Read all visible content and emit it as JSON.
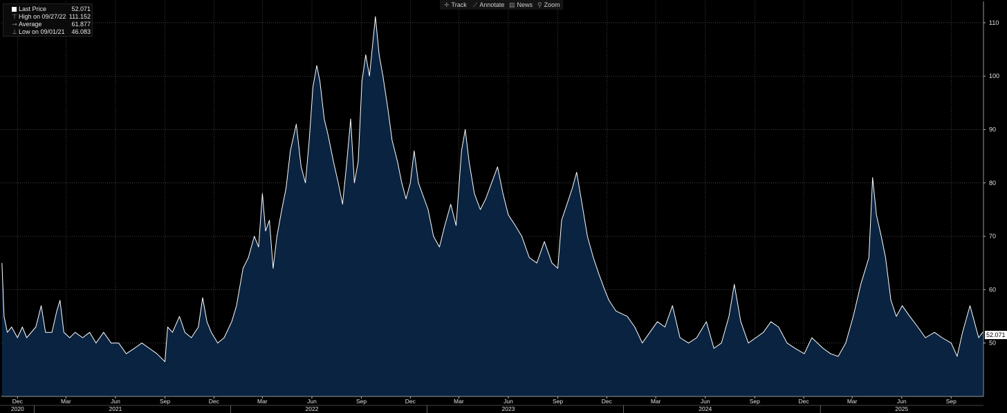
{
  "toolbar": {
    "track": {
      "label": "Track",
      "icon": "crosshair-icon"
    },
    "annotate": {
      "label": "Annotate",
      "icon": "pencil-icon"
    },
    "news": {
      "label": "News",
      "icon": "news-icon"
    },
    "zoom": {
      "label": "Zoom",
      "icon": "magnifier-icon"
    }
  },
  "legend": {
    "last_price": {
      "label": "Last Price",
      "value": "52.071"
    },
    "high": {
      "label": "High on 09/27/22",
      "value": "111.152"
    },
    "average": {
      "label": "Average",
      "value": "61.877"
    },
    "low": {
      "label": "Low on 09/01/21",
      "value": "46.083"
    }
  },
  "last_price_tag": "52.071",
  "chart_data": {
    "type": "area",
    "colors": {
      "line": "#ffffff",
      "fill": "#0a2340",
      "background": "#000000",
      "grid": "#555555"
    },
    "grid": true,
    "ylim": [
      40,
      114
    ],
    "y_ticks": [
      "50",
      "60",
      "70",
      "80",
      "90",
      "100",
      "110"
    ],
    "x_range": [
      "2020-11-01",
      "2025-10-31"
    ],
    "month_ticks": [
      {
        "date": "2020-12-01",
        "label": "Dec"
      },
      {
        "date": "2021-03-01",
        "label": "Mar"
      },
      {
        "date": "2021-06-01",
        "label": "Jun"
      },
      {
        "date": "2021-09-01",
        "label": "Sep"
      },
      {
        "date": "2021-12-01",
        "label": "Dec"
      },
      {
        "date": "2022-03-01",
        "label": "Mar"
      },
      {
        "date": "2022-06-01",
        "label": "Jun"
      },
      {
        "date": "2022-09-01",
        "label": "Sep"
      },
      {
        "date": "2022-12-01",
        "label": "Dec"
      },
      {
        "date": "2023-03-01",
        "label": "Mar"
      },
      {
        "date": "2023-06-01",
        "label": "Jun"
      },
      {
        "date": "2023-09-01",
        "label": "Sep"
      },
      {
        "date": "2023-12-01",
        "label": "Dec"
      },
      {
        "date": "2024-03-01",
        "label": "Mar"
      },
      {
        "date": "2024-06-01",
        "label": "Jun"
      },
      {
        "date": "2024-09-01",
        "label": "Sep"
      },
      {
        "date": "2024-12-01",
        "label": "Dec"
      },
      {
        "date": "2025-03-01",
        "label": "Mar"
      },
      {
        "date": "2025-06-01",
        "label": "Jun"
      },
      {
        "date": "2025-09-01",
        "label": "Sep"
      }
    ],
    "year_labels": [
      {
        "date": "2020-12-01",
        "label": "2020"
      },
      {
        "date": "2021-06-01",
        "label": "2021"
      },
      {
        "date": "2022-06-01",
        "label": "2022"
      },
      {
        "date": "2023-06-01",
        "label": "2023"
      },
      {
        "date": "2024-06-01",
        "label": "2024"
      },
      {
        "date": "2025-06-01",
        "label": "2025"
      }
    ],
    "year_boundaries": [
      "2021-01-01",
      "2022-01-01",
      "2023-01-01",
      "2024-01-01",
      "2025-01-01"
    ],
    "series": [
      {
        "values": [
          [
            "2020-11-02",
            65
          ],
          [
            "2020-11-06",
            55
          ],
          [
            "2020-11-12",
            52
          ],
          [
            "2020-11-20",
            53
          ],
          [
            "2020-12-01",
            51
          ],
          [
            "2020-12-10",
            53
          ],
          [
            "2020-12-18",
            51
          ],
          [
            "2021-01-04",
            53
          ],
          [
            "2021-01-14",
            57
          ],
          [
            "2021-01-22",
            52
          ],
          [
            "2021-02-03",
            52
          ],
          [
            "2021-02-12",
            56
          ],
          [
            "2021-02-18",
            58
          ],
          [
            "2021-02-25",
            52
          ],
          [
            "2021-03-08",
            51
          ],
          [
            "2021-03-18",
            52
          ],
          [
            "2021-04-01",
            51
          ],
          [
            "2021-04-14",
            52
          ],
          [
            "2021-04-26",
            50
          ],
          [
            "2021-05-10",
            52
          ],
          [
            "2021-05-24",
            50
          ],
          [
            "2021-06-07",
            50
          ],
          [
            "2021-06-21",
            48
          ],
          [
            "2021-07-06",
            49
          ],
          [
            "2021-07-20",
            50
          ],
          [
            "2021-08-03",
            49
          ],
          [
            "2021-08-17",
            48
          ],
          [
            "2021-09-01",
            46.5
          ],
          [
            "2021-09-06",
            53
          ],
          [
            "2021-09-15",
            52
          ],
          [
            "2021-09-28",
            55
          ],
          [
            "2021-10-08",
            52
          ],
          [
            "2021-10-20",
            51
          ],
          [
            "2021-11-02",
            53
          ],
          [
            "2021-11-10",
            58.5
          ],
          [
            "2021-11-18",
            54
          ],
          [
            "2021-11-26",
            52
          ],
          [
            "2021-12-08",
            50
          ],
          [
            "2021-12-20",
            51
          ],
          [
            "2022-01-03",
            54
          ],
          [
            "2022-01-12",
            57
          ],
          [
            "2022-01-24",
            64
          ],
          [
            "2022-02-03",
            66
          ],
          [
            "2022-02-14",
            70
          ],
          [
            "2022-02-22",
            68
          ],
          [
            "2022-03-01",
            78
          ],
          [
            "2022-03-07",
            71
          ],
          [
            "2022-03-14",
            73
          ],
          [
            "2022-03-21",
            64
          ],
          [
            "2022-03-28",
            70
          ],
          [
            "2022-04-06",
            75
          ],
          [
            "2022-04-14",
            79
          ],
          [
            "2022-04-22",
            86
          ],
          [
            "2022-05-03",
            91
          ],
          [
            "2022-05-12",
            83
          ],
          [
            "2022-05-20",
            80
          ],
          [
            "2022-05-27",
            88
          ],
          [
            "2022-06-03",
            98
          ],
          [
            "2022-06-10",
            102
          ],
          [
            "2022-06-16",
            99
          ],
          [
            "2022-06-24",
            92
          ],
          [
            "2022-07-01",
            89
          ],
          [
            "2022-07-11",
            84
          ],
          [
            "2022-07-20",
            80
          ],
          [
            "2022-07-28",
            76
          ],
          [
            "2022-08-05",
            84
          ],
          [
            "2022-08-12",
            92
          ],
          [
            "2022-08-19",
            80
          ],
          [
            "2022-08-26",
            84
          ],
          [
            "2022-09-02",
            99
          ],
          [
            "2022-09-09",
            104
          ],
          [
            "2022-09-16",
            100
          ],
          [
            "2022-09-27",
            111.152
          ],
          [
            "2022-10-04",
            104
          ],
          [
            "2022-10-11",
            100
          ],
          [
            "2022-10-20",
            94
          ],
          [
            "2022-10-28",
            88
          ],
          [
            "2022-11-07",
            84
          ],
          [
            "2022-11-15",
            80
          ],
          [
            "2022-11-23",
            77
          ],
          [
            "2022-12-01",
            80
          ],
          [
            "2022-12-08",
            86
          ],
          [
            "2022-12-16",
            80
          ],
          [
            "2023-01-03",
            75
          ],
          [
            "2023-01-13",
            70
          ],
          [
            "2023-01-24",
            68
          ],
          [
            "2023-02-03",
            72
          ],
          [
            "2023-02-14",
            76
          ],
          [
            "2023-02-24",
            72
          ],
          [
            "2023-03-06",
            86
          ],
          [
            "2023-03-13",
            90
          ],
          [
            "2023-03-20",
            84
          ],
          [
            "2023-03-30",
            78
          ],
          [
            "2023-04-10",
            75
          ],
          [
            "2023-04-20",
            77
          ],
          [
            "2023-05-01",
            80
          ],
          [
            "2023-05-12",
            83
          ],
          [
            "2023-05-22",
            78
          ],
          [
            "2023-06-01",
            74
          ],
          [
            "2023-06-14",
            72
          ],
          [
            "2023-06-26",
            70
          ],
          [
            "2023-07-10",
            66
          ],
          [
            "2023-07-24",
            65
          ],
          [
            "2023-08-07",
            69
          ],
          [
            "2023-08-21",
            65
          ],
          [
            "2023-09-01",
            64
          ],
          [
            "2023-09-08",
            73
          ],
          [
            "2023-09-18",
            76
          ],
          [
            "2023-09-28",
            79
          ],
          [
            "2023-10-06",
            82
          ],
          [
            "2023-10-16",
            76
          ],
          [
            "2023-10-26",
            70
          ],
          [
            "2023-11-06",
            66
          ],
          [
            "2023-11-16",
            63
          ],
          [
            "2023-11-27",
            60
          ],
          [
            "2023-12-05",
            58
          ],
          [
            "2023-12-18",
            56
          ],
          [
            "2024-01-08",
            55
          ],
          [
            "2024-01-22",
            53
          ],
          [
            "2024-02-05",
            50
          ],
          [
            "2024-02-19",
            52
          ],
          [
            "2024-03-04",
            54
          ],
          [
            "2024-03-18",
            53
          ],
          [
            "2024-04-01",
            57
          ],
          [
            "2024-04-15",
            51
          ],
          [
            "2024-05-01",
            50
          ],
          [
            "2024-05-16",
            51
          ],
          [
            "2024-06-03",
            54
          ],
          [
            "2024-06-17",
            49
          ],
          [
            "2024-07-01",
            50
          ],
          [
            "2024-07-15",
            55
          ],
          [
            "2024-07-25",
            61
          ],
          [
            "2024-08-06",
            54
          ],
          [
            "2024-08-20",
            50
          ],
          [
            "2024-09-03",
            51
          ],
          [
            "2024-09-17",
            52
          ],
          [
            "2024-10-01",
            54
          ],
          [
            "2024-10-15",
            53
          ],
          [
            "2024-10-31",
            50
          ],
          [
            "2024-11-15",
            49
          ],
          [
            "2024-12-02",
            48
          ],
          [
            "2024-12-16",
            51
          ],
          [
            "2025-01-06",
            49
          ],
          [
            "2025-01-20",
            48
          ],
          [
            "2025-02-03",
            47.5
          ],
          [
            "2025-02-17",
            50
          ],
          [
            "2025-03-03",
            55
          ],
          [
            "2025-03-17",
            61
          ],
          [
            "2025-04-01",
            66
          ],
          [
            "2025-04-08",
            81
          ],
          [
            "2025-04-15",
            74
          ],
          [
            "2025-04-24",
            70
          ],
          [
            "2025-05-02",
            66
          ],
          [
            "2025-05-12",
            58
          ],
          [
            "2025-05-22",
            55
          ],
          [
            "2025-06-02",
            57
          ],
          [
            "2025-06-16",
            55
          ],
          [
            "2025-07-01",
            53
          ],
          [
            "2025-07-15",
            51
          ],
          [
            "2025-08-01",
            52
          ],
          [
            "2025-08-15",
            51
          ],
          [
            "2025-09-01",
            50
          ],
          [
            "2025-09-12",
            47.5
          ],
          [
            "2025-09-22",
            52
          ],
          [
            "2025-10-06",
            57
          ],
          [
            "2025-10-14",
            54
          ],
          [
            "2025-10-22",
            51
          ],
          [
            "2025-10-30",
            52.071
          ]
        ]
      }
    ]
  }
}
